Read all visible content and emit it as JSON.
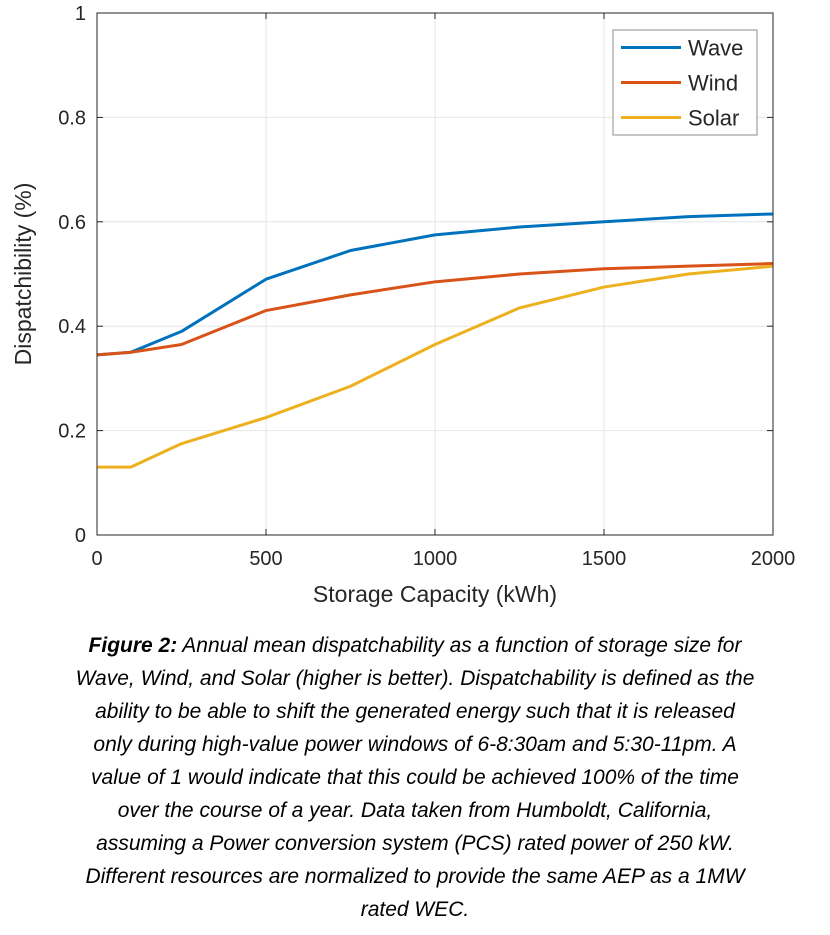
{
  "chart_data": {
    "type": "line",
    "x": [
      0,
      100,
      250,
      500,
      750,
      1000,
      1250,
      1500,
      1750,
      2000
    ],
    "series": [
      {
        "name": "Wave",
        "color": "#0072BD",
        "values": [
          0.345,
          0.35,
          0.39,
          0.49,
          0.545,
          0.575,
          0.59,
          0.6,
          0.61,
          0.615
        ]
      },
      {
        "name": "Wind",
        "color": "#D95319",
        "values": [
          0.345,
          0.35,
          0.365,
          0.43,
          0.46,
          0.485,
          0.5,
          0.51,
          0.515,
          0.52
        ]
      },
      {
        "name": "Solar",
        "color": "#EDB120",
        "values": [
          0.13,
          0.13,
          0.175,
          0.225,
          0.285,
          0.365,
          0.435,
          0.475,
          0.5,
          0.515
        ]
      }
    ],
    "xlabel": "Storage Capacity (kWh)",
    "ylabel": "Dispatchibility (%)",
    "xlim": [
      0,
      2000
    ],
    "ylim": [
      0,
      1
    ],
    "xticks": [
      0,
      500,
      1000,
      1500,
      2000
    ],
    "yticks": [
      0,
      0.2,
      0.4,
      0.6,
      0.8,
      1
    ],
    "grid": true,
    "legend_position": "top-right",
    "legend": [
      "Wave",
      "Wind",
      "Solar"
    ]
  },
  "style": {
    "axis_color": "#262626",
    "grid_color": "#e6e6e6",
    "legend_border_color": "#8c8c8c",
    "background": "#ffffff",
    "line_width": 3
  },
  "caption": {
    "label": "Figure 2:",
    "lines": [
      " Annual mean dispatchability as a function of storage size for",
      "Wave, Wind, and Solar (higher is better). Dispatchability is defined as the",
      "ability to be able to shift the generated energy such that it is released",
      "only during high-value power windows of 6-8:30am and 5:30-11pm. A",
      "value of 1 would indicate that this could be achieved 100% of the time",
      "over the course of a year. Data taken from Humboldt, California,",
      "assuming a Power conversion system (PCS) rated power of 250 kW.",
      "Different resources are normalized to provide the same AEP as a 1MW",
      "rated WEC."
    ]
  }
}
